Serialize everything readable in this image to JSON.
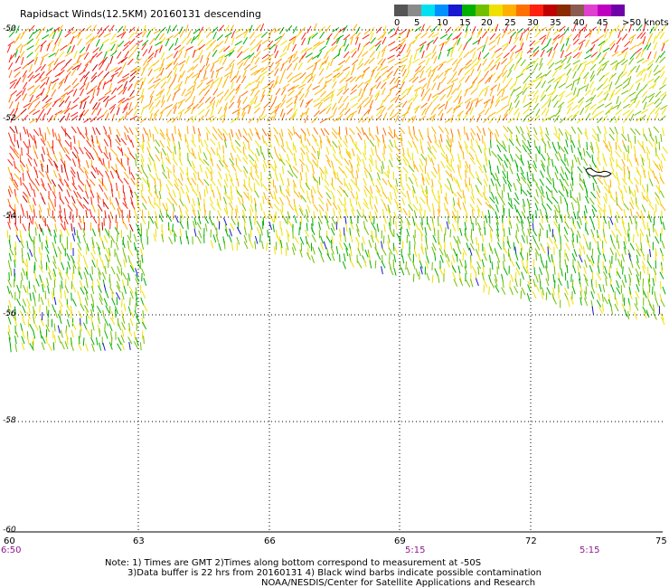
{
  "title": "Rapidsact Winds(12.5KM) 20160131 descending",
  "colorbar": {
    "swatches": [
      "#555555",
      "#8a8a8a",
      "#00e0f0",
      "#0090ff",
      "#1818d0",
      "#00b000",
      "#70c000",
      "#f0e000",
      "#ffb000",
      "#ff7000",
      "#ff2010",
      "#c00000",
      "#8b2a00",
      "#8b5a50",
      "#e040d0",
      "#c000c0",
      "#7000a8"
    ],
    "labels": [
      "0",
      "5",
      "10",
      "15",
      "20",
      "25",
      "30",
      "35",
      "40",
      "45",
      ">50 knots"
    ]
  },
  "lat_labels": [
    "-50",
    "-52",
    "-54",
    "-56",
    "-58",
    "-60"
  ],
  "lon_labels": [
    "60",
    "63",
    "66",
    "69",
    "72",
    "75"
  ],
  "time_labels": [
    "6:50",
    "5:15",
    "5:15"
  ],
  "notes": {
    "line1": "Note: 1) Times are GMT 2)Times along bottom correspond to measurement at -50S",
    "line2": "3)Data buffer is 22 hrs from 20160131 4) Black wind barbs indicate possible contamination",
    "line3": "NOAA/NESDIS/Center for Satellite Applications and Research"
  }
}
